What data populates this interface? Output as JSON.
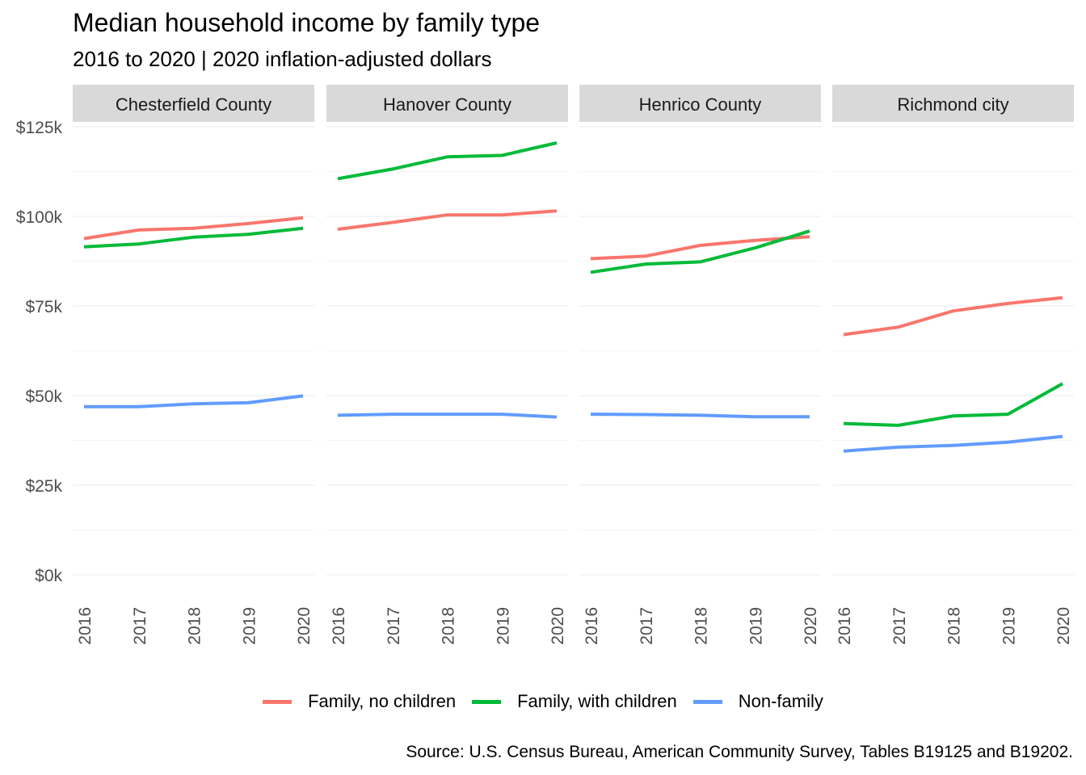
{
  "title": "Median household income by family type",
  "subtitle": "2016 to 2020 | 2020 inflation-adjusted dollars",
  "caption": "Source: U.S. Census Bureau, American Community Survey, Tables B19125 and B19202.",
  "chart_data": {
    "type": "line",
    "facets": [
      "Chesterfield County",
      "Hanover County",
      "Henrico County",
      "Richmond city"
    ],
    "x": [
      2016,
      2017,
      2018,
      2019,
      2020
    ],
    "x_tick_labels": [
      "2016",
      "2017",
      "2018",
      "2019",
      "2020"
    ],
    "ylim": [
      0,
      125000
    ],
    "y_ticks": [
      0,
      25000,
      50000,
      75000,
      100000,
      125000
    ],
    "y_tick_labels": [
      "$0k",
      "$25k",
      "$50k",
      "$75k",
      "$100k",
      "$125k"
    ],
    "xlabel": "",
    "ylabel": "",
    "grid": true,
    "legend_position": "bottom",
    "series": [
      {
        "name": "Family, no children",
        "color": "#F8766D",
        "values": {
          "Chesterfield County": [
            93800,
            96200,
            96700,
            98000,
            99600
          ],
          "Hanover County": [
            96400,
            98300,
            100400,
            100400,
            101500
          ],
          "Henrico County": [
            88200,
            88900,
            91900,
            93300,
            94300
          ],
          "Richmond city": [
            67000,
            69100,
            73600,
            75700,
            77300
          ]
        }
      },
      {
        "name": "Family, with children",
        "color": "#00BA38",
        "values": {
          "Chesterfield County": [
            91500,
            92300,
            94200,
            95000,
            96700
          ],
          "Hanover County": [
            110500,
            113200,
            116600,
            117000,
            120500
          ],
          "Henrico County": [
            84400,
            86700,
            87300,
            91200,
            95900
          ],
          "Richmond city": [
            42200,
            41700,
            44300,
            44800,
            53300
          ]
        }
      },
      {
        "name": "Non-family",
        "color": "#619CFF",
        "values": {
          "Chesterfield County": [
            46900,
            46900,
            47700,
            48000,
            49900
          ],
          "Hanover County": [
            44500,
            44800,
            44800,
            44800,
            44000
          ],
          "Henrico County": [
            44800,
            44700,
            44500,
            44100,
            44100
          ],
          "Richmond city": [
            34500,
            35600,
            36100,
            37000,
            38600
          ]
        }
      }
    ]
  }
}
